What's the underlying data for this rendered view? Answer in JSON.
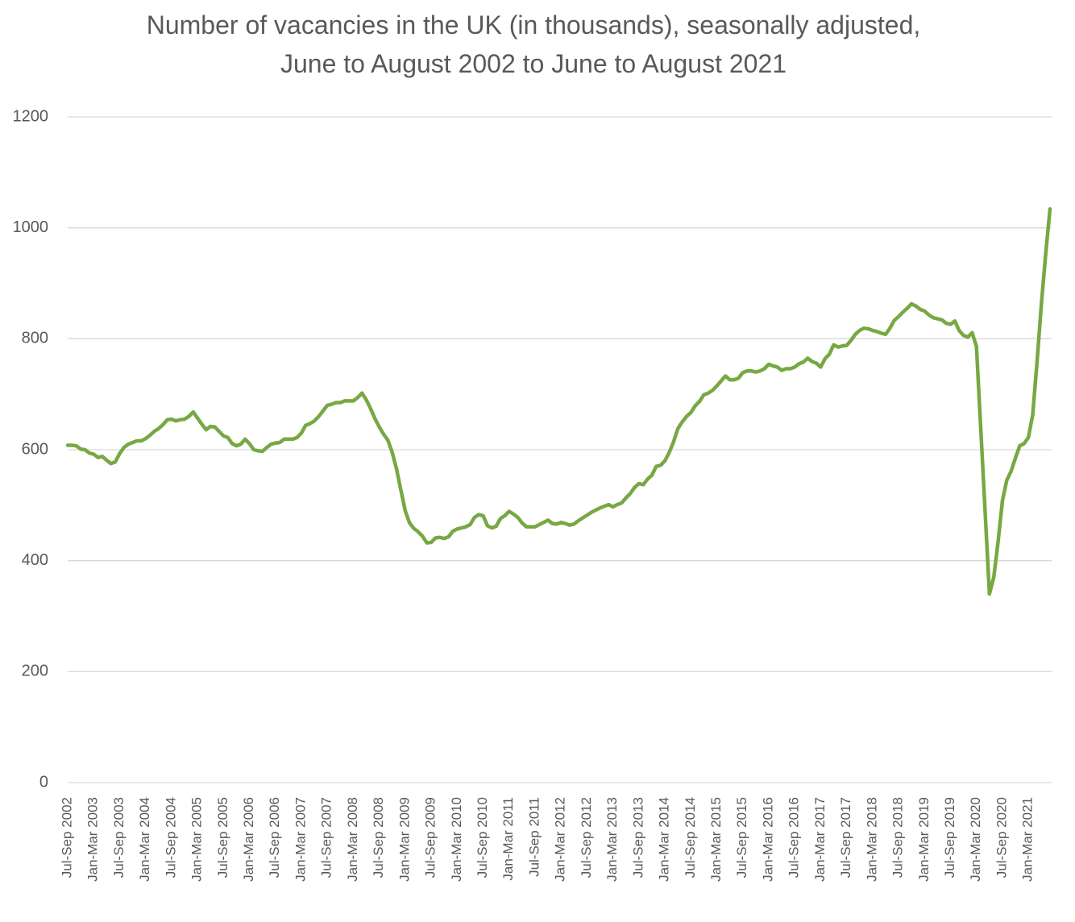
{
  "chart_data": {
    "type": "line",
    "title": [
      "Number of vacancies in the UK (in thousands), seasonally adjusted,",
      "June to August 2002 to June to August 2021"
    ],
    "categories": [
      "Jul-Sep 2002",
      null,
      null,
      null,
      null,
      null,
      "Jan-Mar 2003",
      null,
      null,
      null,
      null,
      null,
      "Jul-Sep 2003",
      null,
      null,
      null,
      null,
      null,
      "Jan-Mar 2004",
      null,
      null,
      null,
      null,
      null,
      "Jul-Sep 2004",
      null,
      null,
      null,
      null,
      null,
      "Jan-Mar 2005",
      null,
      null,
      null,
      null,
      null,
      "Jul-Sep 2005",
      null,
      null,
      null,
      null,
      null,
      "Jan-Mar 2006",
      null,
      null,
      null,
      null,
      null,
      "Jul-Sep 2006",
      null,
      null,
      null,
      null,
      null,
      "Jan-Mar 2007",
      null,
      null,
      null,
      null,
      null,
      "Jul-Sep 2007",
      null,
      null,
      null,
      null,
      null,
      "Jan-Mar 2008",
      null,
      null,
      null,
      null,
      null,
      "Jul-Sep 2008",
      null,
      null,
      null,
      null,
      null,
      "Jan-Mar 2009",
      null,
      null,
      null,
      null,
      null,
      "Jul-Sep 2009",
      null,
      null,
      null,
      null,
      null,
      "Jan-Mar 2010",
      null,
      null,
      null,
      null,
      null,
      "Jul-Sep 2010",
      null,
      null,
      null,
      null,
      null,
      "Jan-Mar 2011",
      null,
      null,
      null,
      null,
      null,
      "Jul-Sep 2011",
      null,
      null,
      null,
      null,
      null,
      "Jan-Mar 2012",
      null,
      null,
      null,
      null,
      null,
      "Jul-Sep 2012",
      null,
      null,
      null,
      null,
      null,
      "Jan-Mar 2013",
      null,
      null,
      null,
      null,
      null,
      "Jul-Sep 2013",
      null,
      null,
      null,
      null,
      null,
      "Jan-Mar 2014",
      null,
      null,
      null,
      null,
      null,
      "Jul-Sep 2014",
      null,
      null,
      null,
      null,
      null,
      "Jan-Mar 2015",
      null,
      null,
      null,
      null,
      null,
      "Jul-Sep 2015",
      null,
      null,
      null,
      null,
      null,
      "Jan-Mar 2016",
      null,
      null,
      null,
      null,
      null,
      "Jul-Sep 2016",
      null,
      null,
      null,
      null,
      null,
      "Jan-Mar 2017",
      null,
      null,
      null,
      null,
      null,
      "Jul-Sep 2017",
      null,
      null,
      null,
      null,
      null,
      "Jan-Mar 2018",
      null,
      null,
      null,
      null,
      null,
      "Jul-Sep 2018",
      null,
      null,
      null,
      null,
      null,
      "Jan-Mar 2019",
      null,
      null,
      null,
      null,
      null,
      "Jul-Sep 2019",
      null,
      null,
      null,
      null,
      null,
      "Jan-Mar 2020",
      null,
      null,
      null,
      null,
      null,
      "Jul-Sep 2020",
      null,
      null,
      null,
      null,
      null,
      "Jan-Mar 2021",
      null,
      null,
      null,
      null,
      null
    ],
    "series": [
      {
        "color": "#77a843",
        "values": [
          608,
          608,
          607,
          601,
          600,
          594,
          592,
          586,
          588,
          581,
          575,
          578,
          593,
          604,
          610,
          613,
          616,
          616,
          620,
          626,
          633,
          638,
          645,
          654,
          655,
          652,
          654,
          655,
          660,
          668,
          657,
          646,
          636,
          642,
          641,
          633,
          625,
          622,
          611,
          607,
          610,
          619,
          611,
          600,
          598,
          597,
          604,
          610,
          612,
          613,
          619,
          619,
          619,
          622,
          630,
          644,
          647,
          652,
          660,
          670,
          680,
          682,
          685,
          685,
          688,
          688,
          688,
          694,
          702,
          690,
          674,
          656,
          641,
          628,
          617,
          595,
          565,
          527,
          490,
          468,
          458,
          452,
          444,
          432,
          433,
          441,
          442,
          440,
          443,
          453,
          457,
          459,
          461,
          465,
          478,
          483,
          481,
          463,
          459,
          462,
          476,
          481,
          489,
          484,
          478,
          468,
          461,
          461,
          461,
          465,
          469,
          473,
          467,
          466,
          469,
          467,
          464,
          466,
          472,
          477,
          482,
          487,
          491,
          495,
          498,
          501,
          497,
          501,
          504,
          513,
          521,
          532,
          539,
          537,
          547,
          554,
          570,
          572,
          580,
          595,
          614,
          638,
          650,
          660,
          667,
          679,
          687,
          699,
          702,
          707,
          715,
          724,
          733,
          726,
          726,
          729,
          739,
          742,
          742,
          740,
          742,
          746,
          754,
          751,
          749,
          743,
          746,
          746,
          749,
          755,
          758,
          765,
          759,
          756,
          749,
          764,
          772,
          789,
          785,
          787,
          788,
          797,
          808,
          815,
          819,
          818,
          815,
          813,
          810,
          808,
          819,
          833,
          840,
          848,
          855,
          863,
          859,
          853,
          850,
          843,
          838,
          836,
          834,
          828,
          826,
          832,
          815,
          806,
          803,
          811,
          786,
          637,
          489,
          340,
          370,
          434,
          508,
          545,
          561,
          585,
          607,
          611,
          622,
          663,
          758,
          862,
          953,
          1034
        ]
      }
    ],
    "ylim": [
      0,
      1200
    ],
    "yticks": [
      0,
      200,
      400,
      600,
      800,
      1000,
      1200
    ],
    "grid": true
  }
}
